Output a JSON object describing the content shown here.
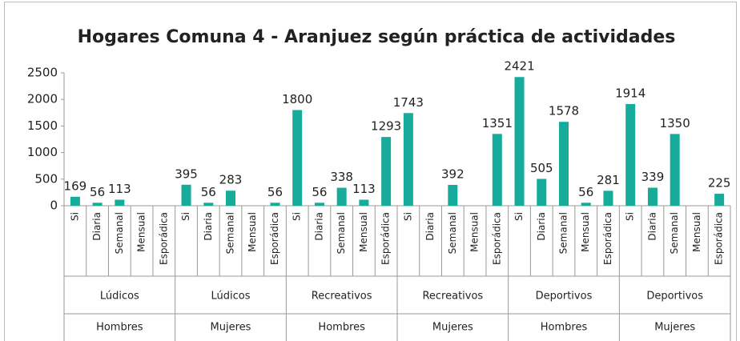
{
  "chart_data": {
    "type": "bar",
    "title": "Hogares Comuna 4 - Aranjuez según práctica de actividades",
    "categories": [
      "Si",
      "Diaria",
      "Semanal",
      "Mensual",
      "Esporádica",
      "Si",
      "Diaria",
      "Semanal",
      "Mensual",
      "Esporádica",
      "Si",
      "Diaria",
      "Semanal",
      "Mensual",
      "Esporádica",
      "Si",
      "Diaria",
      "Semanal",
      "Mensual",
      "Esporádica",
      "Si",
      "Diaria",
      "Semanal",
      "Mensual",
      "Esporádica",
      "Si",
      "Diaria",
      "Semanal",
      "Mensual",
      "Esporádica"
    ],
    "groups": [
      {
        "activity": "Lúdicos",
        "gender": "Hombres"
      },
      {
        "activity": "Lúdicos",
        "gender": "Mujeres"
      },
      {
        "activity": "Recreativos",
        "gender": "Hombres"
      },
      {
        "activity": "Recreativos",
        "gender": "Mujeres"
      },
      {
        "activity": "Deportivos",
        "gender": "Hombres"
      },
      {
        "activity": "Deportivos",
        "gender": "Mujeres"
      }
    ],
    "values": [
      169,
      56,
      113,
      null,
      null,
      395,
      56,
      283,
      null,
      56,
      1800,
      56,
      338,
      113,
      1293,
      1743,
      null,
      392,
      null,
      1351,
      2421,
      505,
      1578,
      56,
      281,
      1914,
      339,
      1350,
      null,
      225
    ],
    "color": "#17ab9b",
    "ylim": [
      0,
      2500
    ],
    "yticks": [
      0,
      500,
      1000,
      1500,
      2000,
      2500
    ],
    "grid": false
  }
}
